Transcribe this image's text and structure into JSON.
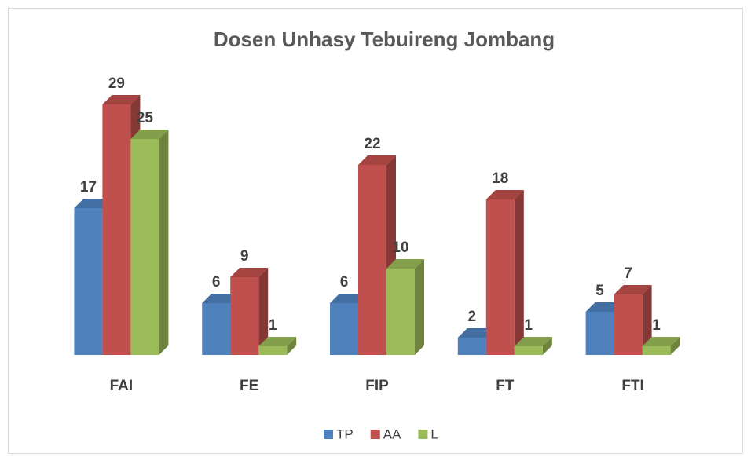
{
  "chart_data": {
    "type": "bar3d",
    "title": "Dosen Unhasy Tebuireng Jombang",
    "categories": [
      "FAI",
      "FE",
      "FIP",
      "FT",
      "FTI"
    ],
    "series": [
      {
        "name": "TP",
        "color": "#4f81bd",
        "values": [
          17,
          6,
          6,
          2,
          5
        ]
      },
      {
        "name": "AA",
        "color": "#c0504d",
        "values": [
          29,
          9,
          22,
          18,
          7
        ]
      },
      {
        "name": "L",
        "color": "#9bbb59",
        "values": [
          25,
          1,
          10,
          1,
          1
        ]
      }
    ],
    "ylim": [
      0,
      30
    ],
    "legend": "bottom"
  }
}
